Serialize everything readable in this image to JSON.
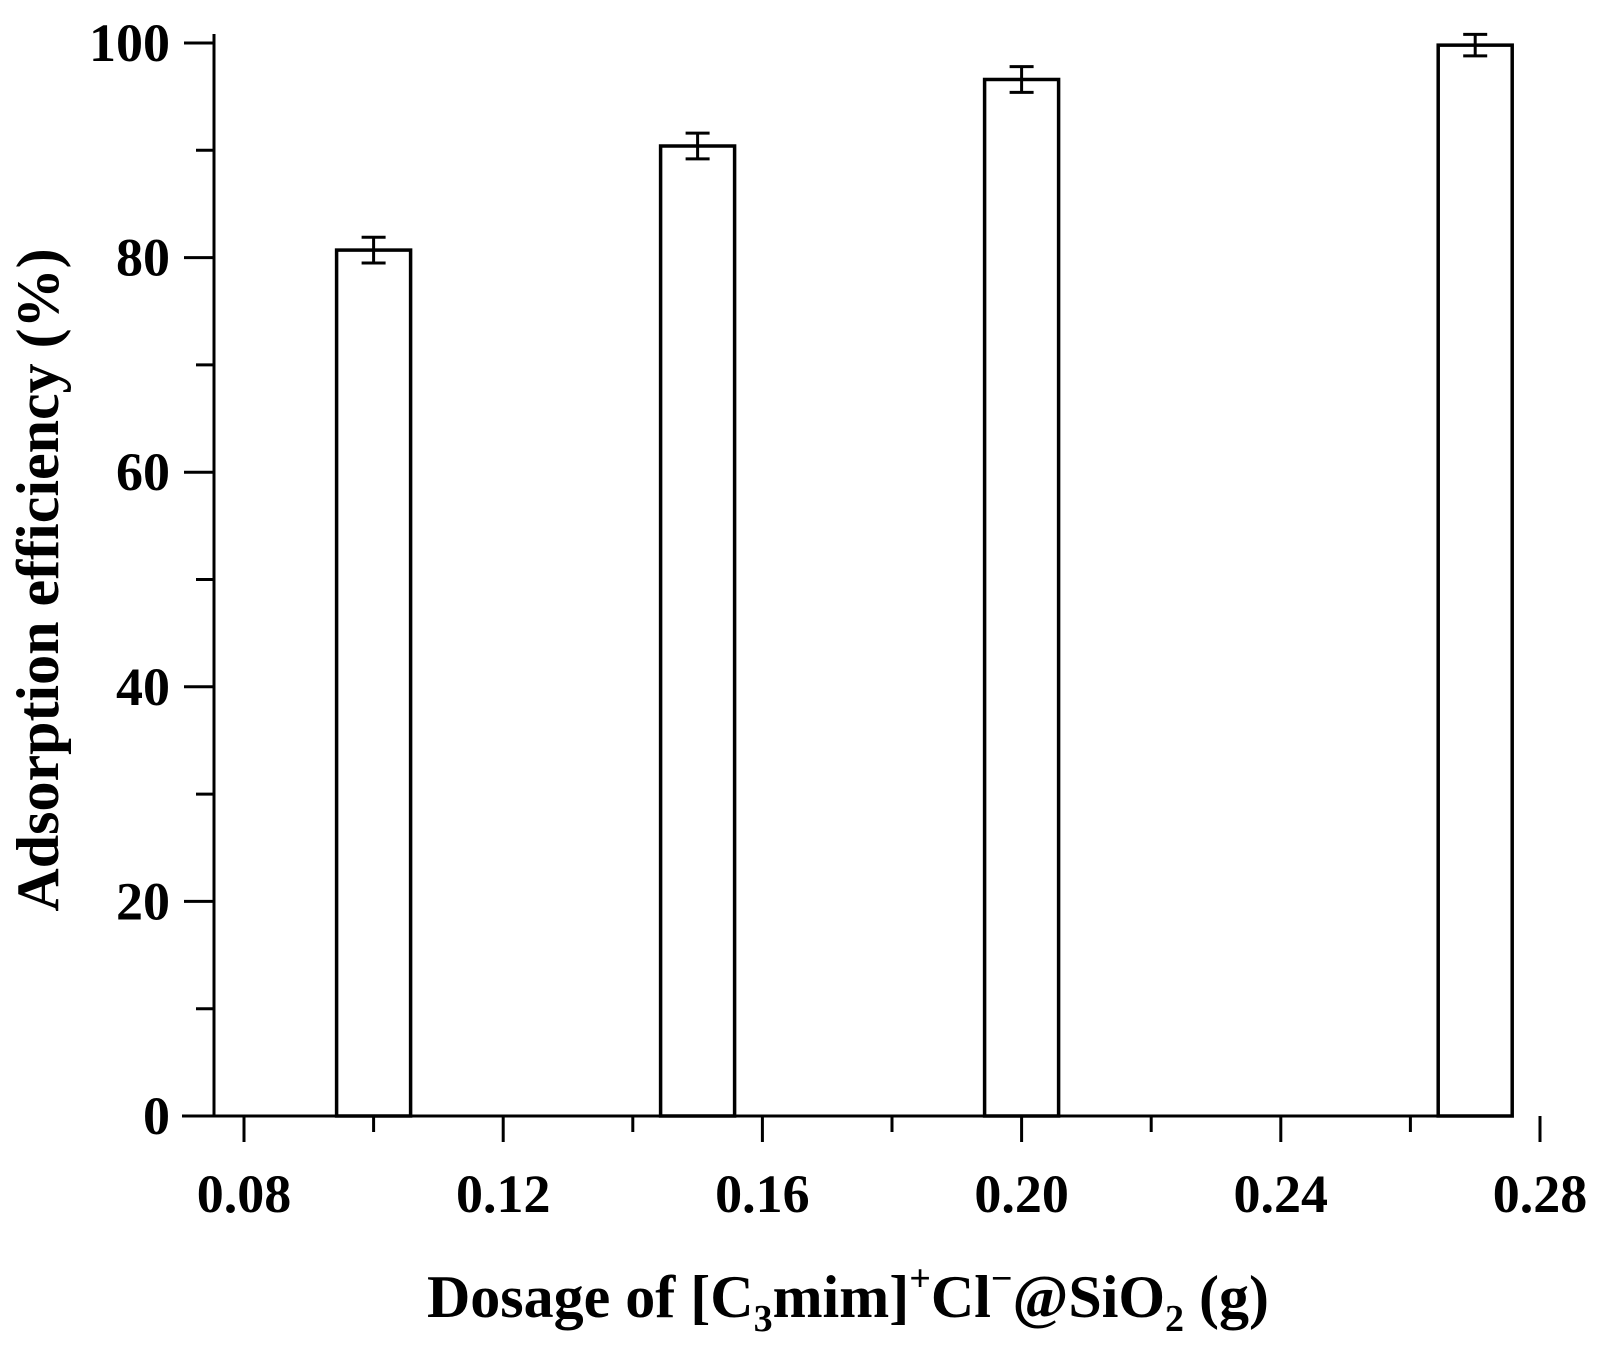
{
  "chart_data": {
    "type": "bar",
    "x": [
      0.1,
      0.15,
      0.2,
      0.27
    ],
    "values": [
      80.7,
      90.4,
      96.6,
      99.8
    ],
    "errors": [
      1.2,
      1.2,
      1.2,
      1.0
    ],
    "xlabel": {
      "before_sub1": "Dosage of [C",
      "sub1": "3",
      "after_sub1": "mim]",
      "sup1": "+",
      "mid": "Cl",
      "sup2": "−",
      "after_sup2": "@SiO",
      "sub2": "2",
      "end": " (g)"
    },
    "ylabel": "Adsorption efficiency (%)",
    "xlim": [
      0.07,
      0.28
    ],
    "ylim": [
      0,
      100
    ],
    "xticks": [
      "0.08",
      "0.12",
      "0.16",
      "0.20",
      "0.24",
      "0.28"
    ],
    "yticks": [
      "0",
      "20",
      "40",
      "60",
      "80",
      "100"
    ],
    "grid": false,
    "bar_fill": "#ffffff",
    "bar_stroke": "#000000"
  }
}
